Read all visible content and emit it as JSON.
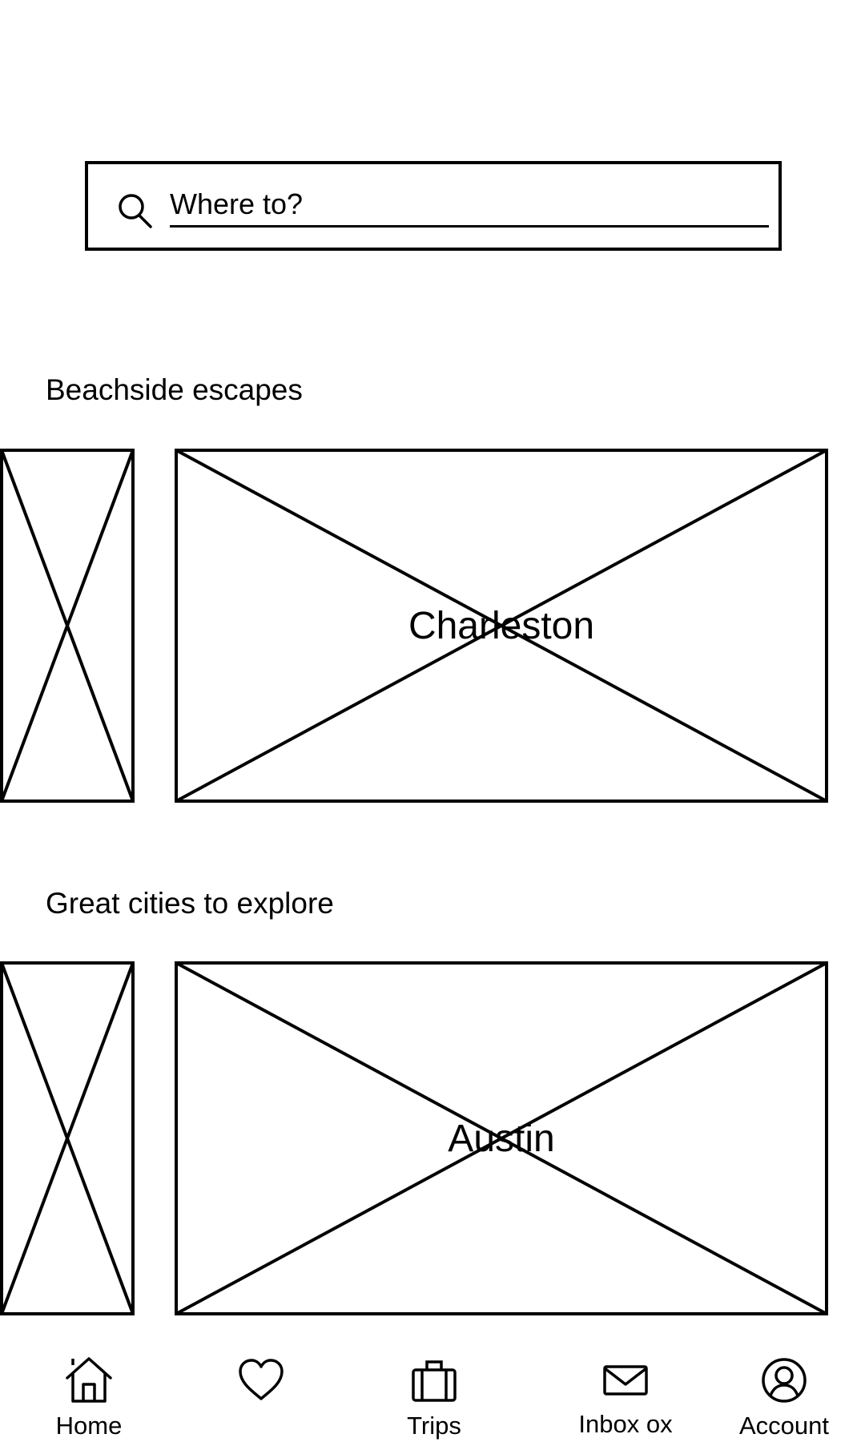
{
  "search": {
    "placeholder": "Where to?",
    "icon": "search-icon"
  },
  "sections": [
    {
      "title": "Beachside escapes",
      "featured_card": {
        "label": "Charleston"
      }
    },
    {
      "title": "Great cities to explore",
      "featured_card": {
        "label": "Austin"
      }
    }
  ],
  "bottom_nav": {
    "items": [
      {
        "label": "Home",
        "icon": "home-icon"
      },
      {
        "label": "",
        "icon": "heart-icon"
      },
      {
        "label": "Trips",
        "icon": "suitcase-icon"
      },
      {
        "label": "Inbox ox",
        "icon": "envelope-icon"
      },
      {
        "label": "Account",
        "icon": "account-icon"
      }
    ]
  }
}
